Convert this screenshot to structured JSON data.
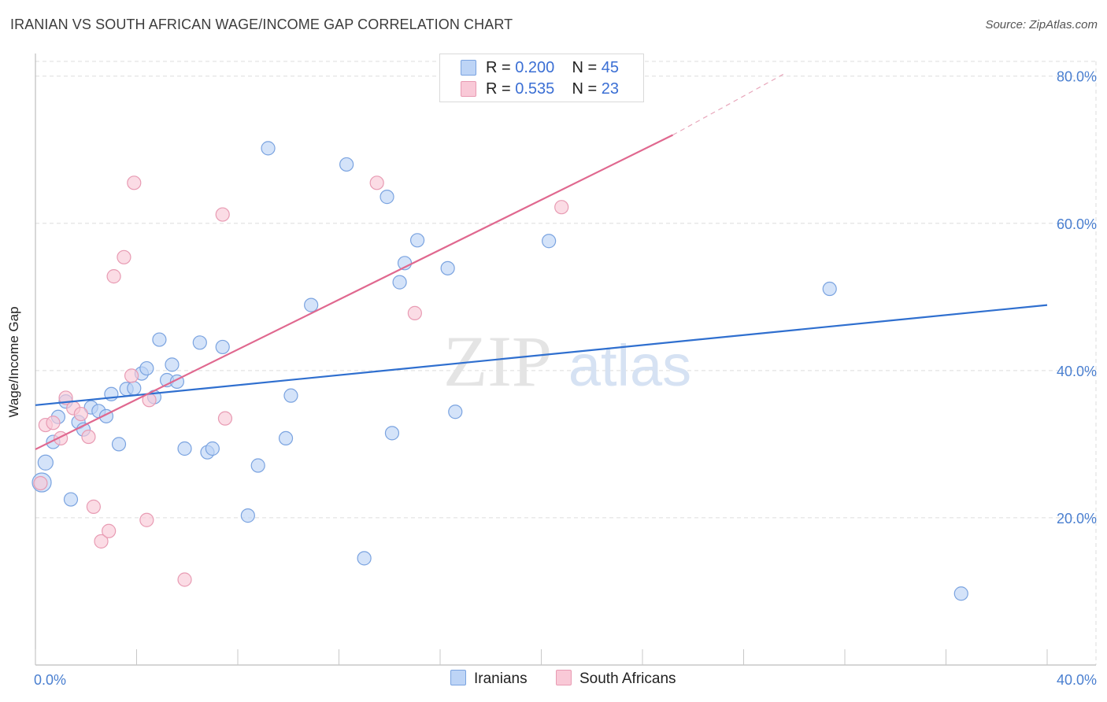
{
  "header": {
    "title": "IRANIAN VS SOUTH AFRICAN WAGE/INCOME GAP CORRELATION CHART",
    "source": "Source: ZipAtlas.com"
  },
  "legend": {
    "iranians": {
      "r_label": "R = ",
      "r_value": "0.200",
      "n_label": "N = ",
      "n_value": "45"
    },
    "south_africans": {
      "r_label": "R = ",
      "r_value": "0.535",
      "n_label": "N = ",
      "n_value": "23"
    }
  },
  "watermark": {
    "zip": "ZIP",
    "atlas": "atlas"
  },
  "colors": {
    "blue_fill": "#bdd4f6",
    "blue_stroke": "#7aa3e0",
    "blue_line": "#2f6fcf",
    "pink_fill": "#f9c9d7",
    "pink_stroke": "#e89bb3",
    "pink_line": "#e0688f",
    "axis_label": "#4a7fd0",
    "grid": "#dddddd"
  },
  "chart_data": {
    "type": "scatter",
    "title": "IRANIAN VS SOUTH AFRICAN WAGE/INCOME GAP CORRELATION CHART",
    "xlabel": "",
    "ylabel": "Wage/Income Gap",
    "xlim": [
      0,
      40
    ],
    "ylim": [
      0,
      82
    ],
    "x_tick_labels": [
      "0.0%",
      "40.0%"
    ],
    "y_ticks": [
      20,
      40,
      60,
      80
    ],
    "y_tick_labels": [
      "20.0%",
      "40.0%",
      "60.0%",
      "80.0%"
    ],
    "grid": true,
    "legend_position": "bottom-center",
    "series": [
      {
        "name": "Iranians",
        "r": 0.2,
        "n": 45,
        "trend": {
          "x": [
            0,
            40
          ],
          "y": [
            35.3,
            48.9
          ]
        },
        "points": [
          {
            "x": 0.25,
            "y": 24.8,
            "s": 22
          },
          {
            "x": 0.4,
            "y": 27.5,
            "s": 17
          },
          {
            "x": 0.7,
            "y": 30.3,
            "s": 15
          },
          {
            "x": 0.9,
            "y": 33.7,
            "s": 15
          },
          {
            "x": 1.2,
            "y": 35.8,
            "s": 15
          },
          {
            "x": 1.4,
            "y": 22.5,
            "s": 15
          },
          {
            "x": 1.7,
            "y": 33.0,
            "s": 15
          },
          {
            "x": 1.9,
            "y": 32.0,
            "s": 15
          },
          {
            "x": 2.2,
            "y": 35.0,
            "s": 15
          },
          {
            "x": 2.5,
            "y": 34.5,
            "s": 15
          },
          {
            "x": 2.8,
            "y": 33.8,
            "s": 15
          },
          {
            "x": 3.0,
            "y": 36.8,
            "s": 15
          },
          {
            "x": 3.3,
            "y": 30.0,
            "s": 15
          },
          {
            "x": 3.6,
            "y": 37.5,
            "s": 15
          },
          {
            "x": 3.9,
            "y": 37.6,
            "s": 15
          },
          {
            "x": 4.2,
            "y": 39.6,
            "s": 15
          },
          {
            "x": 4.4,
            "y": 40.3,
            "s": 15
          },
          {
            "x": 4.7,
            "y": 36.4,
            "s": 15
          },
          {
            "x": 4.9,
            "y": 44.2,
            "s": 15
          },
          {
            "x": 5.2,
            "y": 38.7,
            "s": 15
          },
          {
            "x": 5.4,
            "y": 40.8,
            "s": 15
          },
          {
            "x": 5.6,
            "y": 38.5,
            "s": 15
          },
          {
            "x": 5.9,
            "y": 29.4,
            "s": 15
          },
          {
            "x": 6.5,
            "y": 43.8,
            "s": 15
          },
          {
            "x": 6.8,
            "y": 28.9,
            "s": 15
          },
          {
            "x": 7.0,
            "y": 29.4,
            "s": 15
          },
          {
            "x": 7.4,
            "y": 43.2,
            "s": 15
          },
          {
            "x": 8.4,
            "y": 20.3,
            "s": 15
          },
          {
            "x": 8.8,
            "y": 27.1,
            "s": 15
          },
          {
            "x": 9.2,
            "y": 70.2,
            "s": 15
          },
          {
            "x": 9.9,
            "y": 30.8,
            "s": 15
          },
          {
            "x": 10.1,
            "y": 36.6,
            "s": 15
          },
          {
            "x": 10.9,
            "y": 48.9,
            "s": 15
          },
          {
            "x": 12.3,
            "y": 68.0,
            "s": 15
          },
          {
            "x": 13.0,
            "y": 14.5,
            "s": 15
          },
          {
            "x": 13.9,
            "y": 63.6,
            "s": 15
          },
          {
            "x": 14.1,
            "y": 31.5,
            "s": 15
          },
          {
            "x": 14.4,
            "y": 52.0,
            "s": 15
          },
          {
            "x": 14.6,
            "y": 54.6,
            "s": 15
          },
          {
            "x": 15.1,
            "y": 57.7,
            "s": 15
          },
          {
            "x": 16.3,
            "y": 53.9,
            "s": 15
          },
          {
            "x": 16.6,
            "y": 34.4,
            "s": 15
          },
          {
            "x": 20.3,
            "y": 57.6,
            "s": 15
          },
          {
            "x": 31.4,
            "y": 51.1,
            "s": 15
          },
          {
            "x": 36.6,
            "y": 9.7,
            "s": 15
          }
        ]
      },
      {
        "name": "South Africans",
        "r": 0.535,
        "n": 23,
        "trend": {
          "x": [
            0,
            25.2
          ],
          "y": [
            29.3,
            72.0
          ]
        },
        "trend_dashed": {
          "x": [
            25.2,
            29.7
          ],
          "y": [
            72.0,
            80.5
          ]
        },
        "points": [
          {
            "x": 0.2,
            "y": 24.7,
            "s": 15
          },
          {
            "x": 0.4,
            "y": 32.6,
            "s": 15
          },
          {
            "x": 0.7,
            "y": 32.9,
            "s": 15
          },
          {
            "x": 1.0,
            "y": 30.8,
            "s": 15
          },
          {
            "x": 1.2,
            "y": 36.3,
            "s": 15
          },
          {
            "x": 1.5,
            "y": 34.9,
            "s": 15
          },
          {
            "x": 1.8,
            "y": 34.1,
            "s": 15
          },
          {
            "x": 2.1,
            "y": 31.0,
            "s": 15
          },
          {
            "x": 2.3,
            "y": 21.5,
            "s": 15
          },
          {
            "x": 2.6,
            "y": 16.8,
            "s": 15
          },
          {
            "x": 2.9,
            "y": 18.2,
            "s": 15
          },
          {
            "x": 3.1,
            "y": 52.8,
            "s": 15
          },
          {
            "x": 3.5,
            "y": 55.4,
            "s": 15
          },
          {
            "x": 3.8,
            "y": 39.3,
            "s": 15
          },
          {
            "x": 3.9,
            "y": 65.5,
            "s": 15
          },
          {
            "x": 4.4,
            "y": 19.7,
            "s": 15
          },
          {
            "x": 4.5,
            "y": 36.0,
            "s": 15
          },
          {
            "x": 5.9,
            "y": 11.6,
            "s": 15
          },
          {
            "x": 7.4,
            "y": 61.2,
            "s": 15
          },
          {
            "x": 7.5,
            "y": 33.5,
            "s": 15
          },
          {
            "x": 13.5,
            "y": 65.5,
            "s": 15
          },
          {
            "x": 15.0,
            "y": 47.8,
            "s": 15
          },
          {
            "x": 20.8,
            "y": 62.2,
            "s": 15
          }
        ]
      }
    ]
  }
}
